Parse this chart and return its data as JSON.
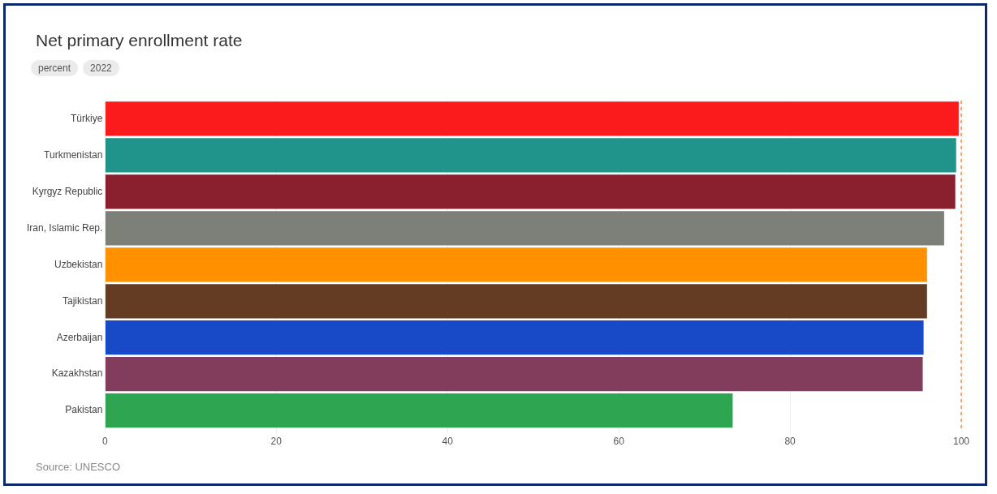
{
  "chart_data": {
    "type": "bar",
    "orientation": "horizontal",
    "title": "Net primary enrollment rate",
    "subtitle": "percent 2022",
    "categories": [
      "Türkiye",
      "Turkmenistan",
      "Kyrgyz Republic",
      "Iran, Islamic Rep.",
      "Uzbekistan",
      "Tajikistan",
      "Azerbaijan",
      "Kazakhstan",
      "Pakistan"
    ],
    "values": [
      99.7,
      99.4,
      99.3,
      98.0,
      96.0,
      96.0,
      95.6,
      95.5,
      73.3
    ],
    "colors": [
      "#fb1a1c",
      "#20938a",
      "#8a1f2d",
      "#7c8079",
      "#ff9100",
      "#633c23",
      "#1849c6",
      "#823c5c",
      "#2ea551"
    ],
    "xlim": [
      0,
      100
    ],
    "xticks": [
      0,
      20,
      40,
      60,
      80,
      100
    ],
    "grid": "x",
    "ref_lines": [
      {
        "axis": "x",
        "value": 100,
        "color": "#f08a3c",
        "line_style": "dashed"
      }
    ],
    "annotations": [
      "Source: UNESCO"
    ]
  }
}
